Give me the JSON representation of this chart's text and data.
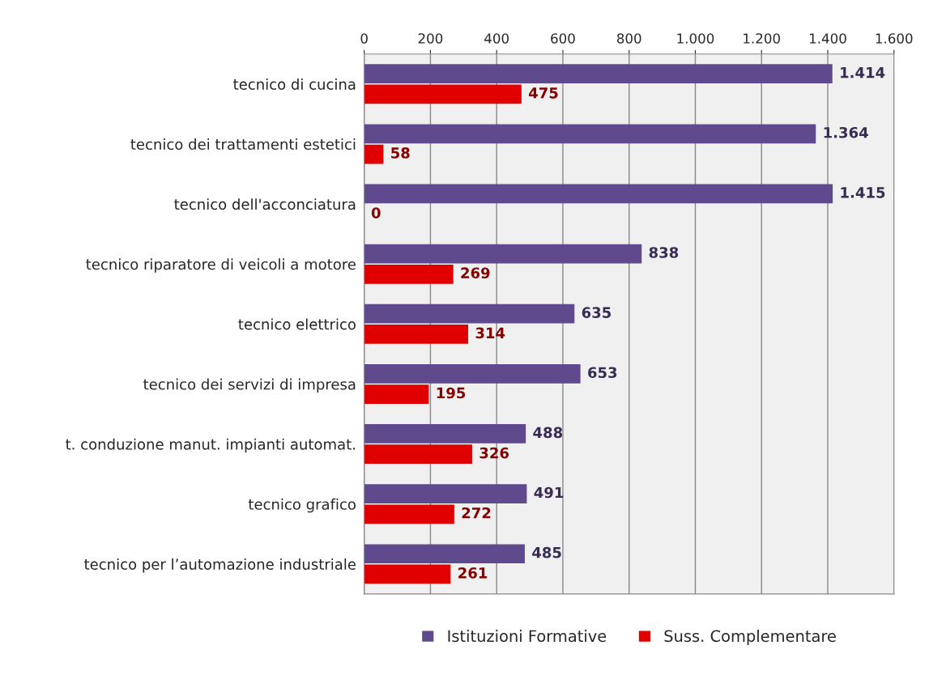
{
  "chart_data": {
    "type": "bar",
    "orientation": "horizontal",
    "categories": [
      "tecnico di cucina",
      "tecnico dei trattamenti estetici",
      "tecnico dell'acconciatura",
      "tecnico riparatore di veicoli a motore",
      "tecnico elettrico",
      "tecnico dei servizi di impresa",
      "t. conduzione manut. impianti automat.",
      "tecnico grafico",
      "tecnico per l’automazione industriale"
    ],
    "series": [
      {
        "name": "Istituzioni Formative",
        "color": "#5e4a8c",
        "values": [
          1414,
          1364,
          1415,
          838,
          635,
          653,
          488,
          491,
          485
        ],
        "value_labels": [
          "1.414",
          "1.364",
          "1.415",
          "838",
          "635",
          "653",
          "488",
          "491",
          "485"
        ]
      },
      {
        "name": "Suss. Complementare",
        "color": "#e00000",
        "values": [
          475,
          58,
          0,
          269,
          314,
          195,
          326,
          272,
          261
        ],
        "value_labels": [
          "475",
          "58",
          "0",
          "269",
          "314",
          "195",
          "326",
          "272",
          "261"
        ]
      }
    ],
    "xlim": [
      0,
      1600
    ],
    "xticks": [
      0,
      200,
      400,
      600,
      800,
      {
        "value": 1000,
        "label": "1.000"
      },
      {
        "value": 1200,
        "label": "1.200"
      },
      {
        "value": 1400,
        "label": "1.400"
      },
      {
        "value": 1600,
        "label": "1.600"
      }
    ],
    "grid": "x",
    "legend": "bottom"
  }
}
